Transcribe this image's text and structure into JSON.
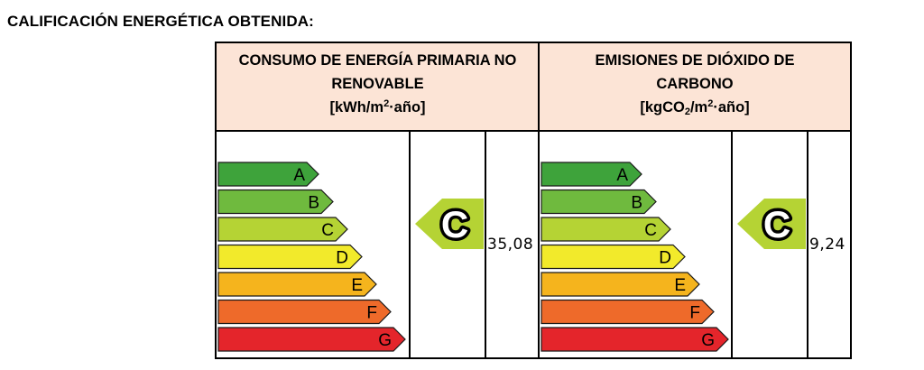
{
  "page_title": "CALIFICACIÓN ENERGÉTICA OBTENIDA:",
  "scale_letters": [
    "A",
    "B",
    "C",
    "D",
    "E",
    "F",
    "G"
  ],
  "scale_colors": [
    "#3ea33b",
    "#6fba3e",
    "#b5d334",
    "#f2ea2b",
    "#f5b41d",
    "#ee6a2a",
    "#e4252b"
  ],
  "panels": [
    {
      "id": "consumo",
      "title_lines": [
        "CONSUMO DE ENERGÍA PRIMARIA NO",
        "RENOVABLE"
      ],
      "unit_prefix": "[kWh/m",
      "unit_sup": "2",
      "unit_suffix": "·año]",
      "rating": "C",
      "rating_color": "#b5d334",
      "value": "35,08"
    },
    {
      "id": "emisiones",
      "title_lines": [
        "EMISIONES DE DIÓXIDO DE",
        "CARBONO"
      ],
      "unit_prefix": "[kgCO",
      "unit_sub": "2",
      "unit_mid": "/m",
      "unit_sup": "2",
      "unit_suffix": "·año]",
      "rating": "C",
      "rating_color": "#b5d334",
      "value": "9,24"
    }
  ]
}
